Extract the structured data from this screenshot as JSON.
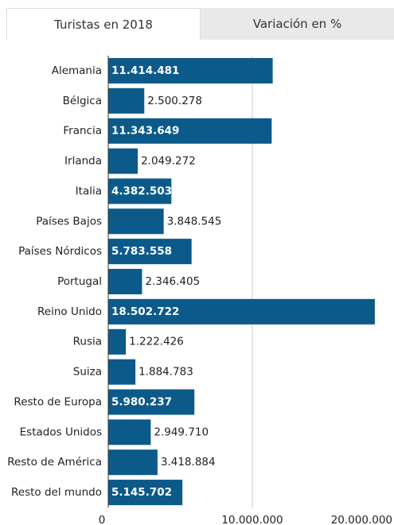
{
  "tabs": [
    "Turistas en 2018",
    "Variación en %"
  ],
  "chart_data": {
    "type": "hbar",
    "categories": [
      "Alemania",
      "Bélgica",
      "Francia",
      "Irlanda",
      "Italia",
      "Países Bajos",
      "Países Nórdicos",
      "Portugal",
      "Reino Unido",
      "Rusia",
      "Suiza",
      "Resto de Europa",
      "Estados Unidos",
      "Resto de América",
      "Resto del mundo"
    ],
    "values": [
      11414481,
      2500278,
      11343649,
      2049272,
      4382503,
      3848545,
      5783558,
      2346405,
      18502722,
      1222426,
      1884783,
      5980237,
      2949710,
      3418884,
      5145702
    ],
    "value_labels": [
      "11.414.481",
      "2.500.278",
      "11.343.649",
      "2.049.272",
      "4.382.503",
      "3.848.545",
      "5.783.558",
      "2.346.405",
      "18.502.722",
      "1.222.426",
      "1.884.783",
      "5.980.237",
      "2.949.710",
      "3.418.884",
      "5.145.702"
    ],
    "color": "#0b5a8a",
    "xlim": [
      0,
      20000000
    ],
    "xticks": [
      0,
      {
        "value": 10000000,
        "label": "10.000.000"
      },
      {
        "value": 20000000,
        "label": "20.000.000"
      }
    ],
    "grid": true
  }
}
